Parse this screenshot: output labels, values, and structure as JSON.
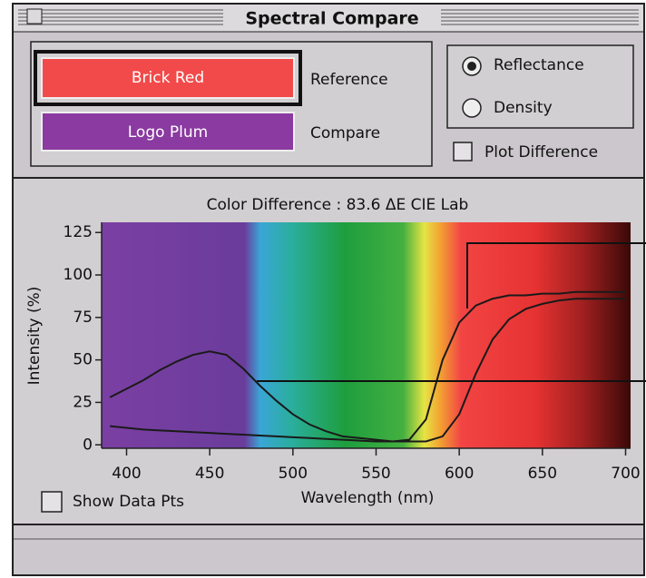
{
  "window": {
    "title": "Spectral Compare"
  },
  "swatches": [
    {
      "label": "Brick Red",
      "role": "Reference",
      "color": "#f24a4a"
    },
    {
      "label": "Logo Plum",
      "role": "Compare",
      "color": "#8a3aa0"
    }
  ],
  "radio": {
    "options": [
      "Reflectance",
      "Density"
    ],
    "selected": 0
  },
  "plot_difference": {
    "label": "Plot Difference",
    "checked": false
  },
  "show_data_pts": {
    "label": "Show Data Pts",
    "checked": false
  },
  "chart_data": {
    "type": "line",
    "title": "Color Difference : 83.6 ΔE CIE Lab",
    "xlabel": "Wavelength (nm)",
    "ylabel": "Intensity (%)",
    "x": [
      390,
      400,
      410,
      420,
      430,
      440,
      450,
      460,
      470,
      480,
      490,
      500,
      510,
      520,
      530,
      540,
      550,
      560,
      570,
      580,
      590,
      600,
      610,
      620,
      630,
      640,
      650,
      660,
      670,
      680,
      690,
      700
    ],
    "series": [
      {
        "color": "#1a1a1a",
        "values": [
          28,
          33,
          38,
          44,
          49,
          53,
          55,
          53,
          45,
          35,
          26,
          18,
          12,
          8,
          5,
          4,
          3,
          2,
          3,
          15,
          50,
          72,
          82,
          86,
          88,
          88,
          89,
          89,
          90,
          90,
          90,
          90
        ]
      },
      {
        "color": "#1a1a1a",
        "values": [
          11,
          10,
          9,
          8.5,
          8,
          7.5,
          7,
          6.5,
          6,
          5.5,
          5,
          4.5,
          4,
          3.5,
          3,
          2.5,
          2,
          2,
          2,
          2,
          5,
          18,
          42,
          62,
          74,
          80,
          83,
          85,
          86,
          86,
          86,
          86
        ]
      }
    ],
    "xlim": [
      385,
      703
    ],
    "ylim": [
      -2,
      131
    ],
    "xticks": [
      400,
      450,
      500,
      550,
      600,
      650,
      700
    ],
    "yticks": [
      0,
      25,
      50,
      75,
      100,
      125
    ]
  }
}
